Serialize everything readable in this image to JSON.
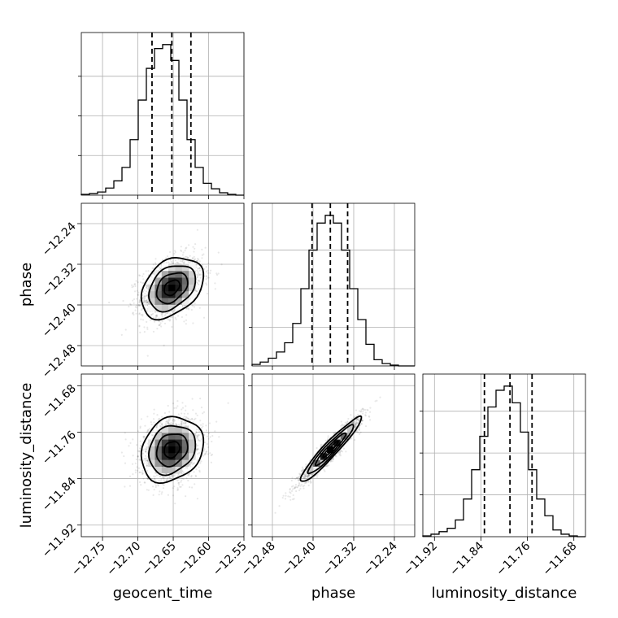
{
  "chart_data": {
    "type": "scatter",
    "variables": [
      "geocent_time",
      "phase",
      "luminosity_distance"
    ],
    "diagonal_type": "histogram",
    "offdiagonal_type": "2d-density-with-contours-and-scatter",
    "grid": true,
    "axes": {
      "geocent_time": {
        "label": "geocent_time",
        "range": [
          -12.78,
          -12.55
        ],
        "ticks": [
          -12.75,
          -12.7,
          -12.65,
          -12.6,
          -12.55
        ],
        "tick_labels": [
          "−12.75",
          "−12.70",
          "−12.65",
          "−12.60",
          "−12.55"
        ]
      },
      "phase": {
        "label": "phase",
        "range": [
          -12.52,
          -12.2
        ],
        "ticks": [
          -12.48,
          -12.4,
          -12.32,
          -12.24
        ],
        "tick_labels": [
          "−12.48",
          "−12.40",
          "−12.32",
          "−12.24"
        ]
      },
      "luminosity_distance": {
        "label": "luminosity_distance",
        "range": [
          -11.94,
          -11.66
        ],
        "ticks": [
          -11.92,
          -11.84,
          -11.76,
          -11.68
        ],
        "tick_labels": [
          "−11.92",
          "−11.84",
          "−11.76",
          "−11.68"
        ]
      }
    },
    "marginals": {
      "geocent_time": {
        "bin_edges": [
          -12.78,
          -12.7685,
          -12.757,
          -12.7455,
          -12.734,
          -12.7225,
          -12.711,
          -12.6995,
          -12.688,
          -12.6765,
          -12.665,
          -12.6535,
          -12.642,
          -12.6305,
          -12.619,
          -12.6075,
          -12.596,
          -12.5845,
          -12.573,
          -12.5615,
          -12.55
        ],
        "counts": [
          1,
          2,
          4,
          9,
          18,
          35,
          70,
          120,
          160,
          185,
          190,
          170,
          120,
          70,
          35,
          15,
          8,
          3,
          1,
          0
        ],
        "quantiles": [
          -12.68,
          -12.652,
          -12.625
        ]
      },
      "phase": {
        "bin_edges": [
          -12.52,
          -12.504,
          -12.488,
          -12.472,
          -12.456,
          -12.44,
          -12.424,
          -12.408,
          -12.392,
          -12.376,
          -12.36,
          -12.344,
          -12.328,
          -12.312,
          -12.296,
          -12.28,
          -12.264,
          -12.248,
          -12.232,
          -12.216,
          -12.2
        ],
        "counts": [
          2,
          5,
          10,
          18,
          30,
          55,
          100,
          150,
          185,
          195,
          185,
          150,
          100,
          60,
          28,
          8,
          3,
          1,
          0,
          0
        ],
        "quantiles": [
          -12.402,
          -12.366,
          -12.332
        ]
      },
      "luminosity_distance": {
        "bin_edges": [
          -11.94,
          -11.926,
          -11.912,
          -11.898,
          -11.884,
          -11.87,
          -11.856,
          -11.842,
          -11.828,
          -11.814,
          -11.8,
          -11.786,
          -11.772,
          -11.758,
          -11.744,
          -11.73,
          -11.716,
          -11.702,
          -11.688,
          -11.674,
          -11.66
        ],
        "counts": [
          1,
          3,
          6,
          10,
          20,
          45,
          80,
          120,
          155,
          175,
          180,
          160,
          125,
          80,
          45,
          25,
          8,
          3,
          1,
          0
        ],
        "quantiles": [
          -11.834,
          -11.79,
          -11.752
        ]
      }
    },
    "joint": {
      "phase_vs_geocent_time": {
        "mean": [
          -12.652,
          -12.366
        ],
        "sd": [
          0.022,
          0.03
        ],
        "corr": 0.35
      },
      "luminosity_distance_vs_geocent_time": {
        "mean": [
          -12.652,
          -11.79
        ],
        "sd": [
          0.022,
          0.028
        ],
        "corr": 0.2
      },
      "luminosity_distance_vs_phase": {
        "mean": [
          -12.366,
          -11.79
        ],
        "sd": [
          0.03,
          0.028
        ],
        "corr": 0.95
      }
    }
  }
}
